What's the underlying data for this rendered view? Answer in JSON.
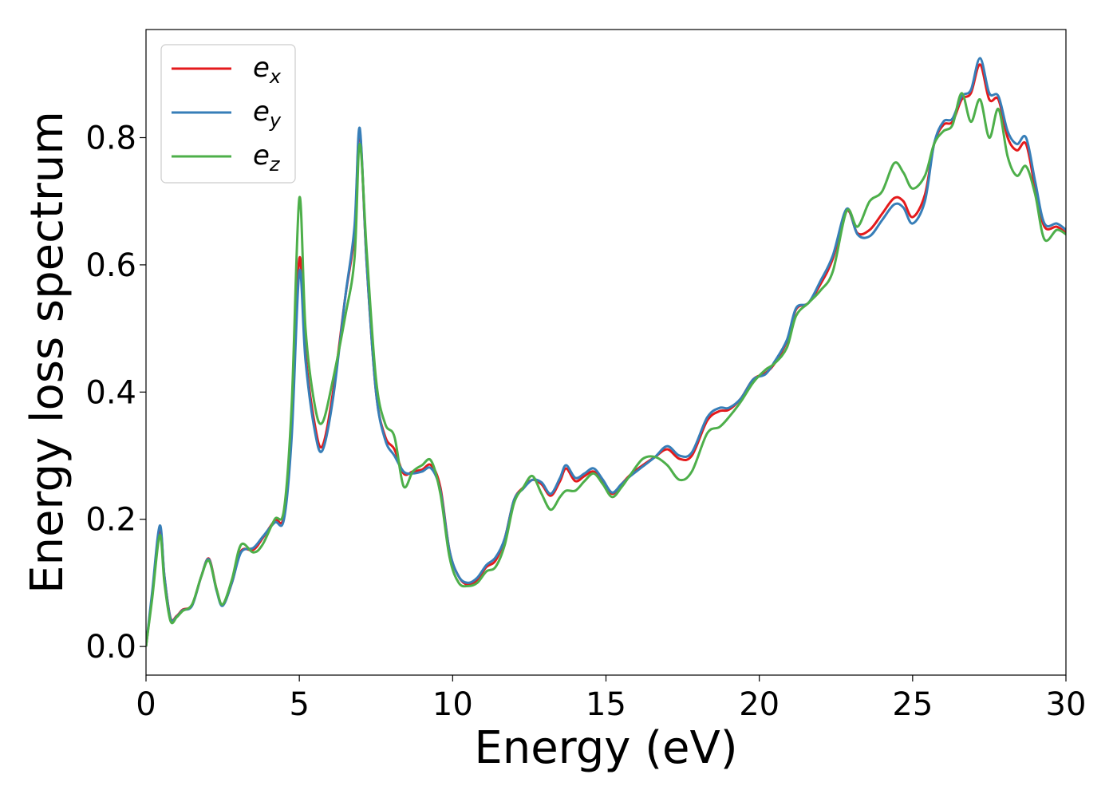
{
  "chart_data": {
    "type": "line",
    "xlabel": "Energy (eV)",
    "ylabel": "Energy loss spectrum",
    "xlim": [
      0,
      30
    ],
    "ylim": [
      -0.045,
      0.97
    ],
    "xticks": [
      0,
      5,
      10,
      15,
      20,
      25,
      30
    ],
    "xtick_labels": [
      "0",
      "5",
      "10",
      "15",
      "20",
      "25",
      "30"
    ],
    "yticks": [
      0.0,
      0.2,
      0.4,
      0.6,
      0.8
    ],
    "ytick_labels": [
      "0.0",
      "0.2",
      "0.4",
      "0.6",
      "0.8"
    ],
    "grid": false,
    "legend_position": "top-left",
    "series": [
      {
        "name": "e",
        "subscript": "x",
        "color": "#e41a1c",
        "points": [
          [
            0,
            0.0
          ],
          [
            0.2,
            0.08
          ],
          [
            0.45,
            0.185
          ],
          [
            0.6,
            0.11
          ],
          [
            0.8,
            0.045
          ],
          [
            1.0,
            0.048
          ],
          [
            1.2,
            0.058
          ],
          [
            1.5,
            0.065
          ],
          [
            1.8,
            0.11
          ],
          [
            2.05,
            0.138
          ],
          [
            2.3,
            0.09
          ],
          [
            2.5,
            0.065
          ],
          [
            2.8,
            0.1
          ],
          [
            3.1,
            0.15
          ],
          [
            3.5,
            0.152
          ],
          [
            3.8,
            0.17
          ],
          [
            4.2,
            0.198
          ],
          [
            4.5,
            0.205
          ],
          [
            4.75,
            0.34
          ],
          [
            5.0,
            0.61
          ],
          [
            5.2,
            0.46
          ],
          [
            5.5,
            0.35
          ],
          [
            5.75,
            0.315
          ],
          [
            6.1,
            0.4
          ],
          [
            6.5,
            0.55
          ],
          [
            6.8,
            0.65
          ],
          [
            6.97,
            0.81
          ],
          [
            7.2,
            0.6
          ],
          [
            7.5,
            0.4
          ],
          [
            7.8,
            0.33
          ],
          [
            8.1,
            0.31
          ],
          [
            8.4,
            0.272
          ],
          [
            8.7,
            0.275
          ],
          [
            9.0,
            0.278
          ],
          [
            9.3,
            0.285
          ],
          [
            9.6,
            0.25
          ],
          [
            9.9,
            0.15
          ],
          [
            10.2,
            0.11
          ],
          [
            10.5,
            0.097
          ],
          [
            10.8,
            0.105
          ],
          [
            11.1,
            0.125
          ],
          [
            11.4,
            0.135
          ],
          [
            11.7,
            0.17
          ],
          [
            12.0,
            0.23
          ],
          [
            12.3,
            0.25
          ],
          [
            12.6,
            0.262
          ],
          [
            12.9,
            0.255
          ],
          [
            13.2,
            0.237
          ],
          [
            13.5,
            0.26
          ],
          [
            13.7,
            0.28
          ],
          [
            14.0,
            0.26
          ],
          [
            14.3,
            0.268
          ],
          [
            14.6,
            0.275
          ],
          [
            14.9,
            0.26
          ],
          [
            15.2,
            0.24
          ],
          [
            15.5,
            0.255
          ],
          [
            15.8,
            0.27
          ],
          [
            16.2,
            0.285
          ],
          [
            16.6,
            0.298
          ],
          [
            17.0,
            0.31
          ],
          [
            17.4,
            0.295
          ],
          [
            17.8,
            0.3
          ],
          [
            18.3,
            0.355
          ],
          [
            18.7,
            0.37
          ],
          [
            19.0,
            0.372
          ],
          [
            19.4,
            0.39
          ],
          [
            19.8,
            0.42
          ],
          [
            20.2,
            0.43
          ],
          [
            20.5,
            0.445
          ],
          [
            20.9,
            0.48
          ],
          [
            21.2,
            0.53
          ],
          [
            21.6,
            0.54
          ],
          [
            22.0,
            0.57
          ],
          [
            22.4,
            0.61
          ],
          [
            22.85,
            0.685
          ],
          [
            23.2,
            0.65
          ],
          [
            23.6,
            0.655
          ],
          [
            24.0,
            0.68
          ],
          [
            24.4,
            0.705
          ],
          [
            24.7,
            0.7
          ],
          [
            25.0,
            0.675
          ],
          [
            25.4,
            0.71
          ],
          [
            25.7,
            0.79
          ],
          [
            26.0,
            0.82
          ],
          [
            26.3,
            0.825
          ],
          [
            26.6,
            0.86
          ],
          [
            26.9,
            0.87
          ],
          [
            27.2,
            0.915
          ],
          [
            27.5,
            0.86
          ],
          [
            27.8,
            0.86
          ],
          [
            28.1,
            0.8
          ],
          [
            28.4,
            0.78
          ],
          [
            28.7,
            0.79
          ],
          [
            29.0,
            0.72
          ],
          [
            29.3,
            0.66
          ],
          [
            29.7,
            0.66
          ],
          [
            30.0,
            0.65
          ]
        ]
      },
      {
        "name": "e",
        "subscript": "y",
        "color": "#377eb8",
        "points": [
          [
            0,
            0.0
          ],
          [
            0.2,
            0.085
          ],
          [
            0.45,
            0.19
          ],
          [
            0.6,
            0.11
          ],
          [
            0.8,
            0.044
          ],
          [
            1.0,
            0.047
          ],
          [
            1.2,
            0.057
          ],
          [
            1.5,
            0.064
          ],
          [
            1.8,
            0.11
          ],
          [
            2.05,
            0.137
          ],
          [
            2.3,
            0.088
          ],
          [
            2.5,
            0.064
          ],
          [
            2.8,
            0.1
          ],
          [
            3.1,
            0.148
          ],
          [
            3.5,
            0.155
          ],
          [
            3.8,
            0.172
          ],
          [
            4.2,
            0.195
          ],
          [
            4.5,
            0.2
          ],
          [
            4.75,
            0.33
          ],
          [
            5.0,
            0.59
          ],
          [
            5.2,
            0.45
          ],
          [
            5.5,
            0.34
          ],
          [
            5.75,
            0.308
          ],
          [
            6.1,
            0.39
          ],
          [
            6.5,
            0.55
          ],
          [
            6.8,
            0.66
          ],
          [
            6.97,
            0.815
          ],
          [
            7.2,
            0.6
          ],
          [
            7.5,
            0.4
          ],
          [
            7.8,
            0.325
          ],
          [
            8.1,
            0.3
          ],
          [
            8.4,
            0.275
          ],
          [
            8.7,
            0.272
          ],
          [
            9.0,
            0.275
          ],
          [
            9.3,
            0.28
          ],
          [
            9.6,
            0.245
          ],
          [
            9.9,
            0.15
          ],
          [
            10.2,
            0.11
          ],
          [
            10.5,
            0.1
          ],
          [
            10.8,
            0.108
          ],
          [
            11.1,
            0.128
          ],
          [
            11.4,
            0.14
          ],
          [
            11.7,
            0.17
          ],
          [
            12.0,
            0.23
          ],
          [
            12.3,
            0.248
          ],
          [
            12.6,
            0.262
          ],
          [
            12.9,
            0.258
          ],
          [
            13.2,
            0.24
          ],
          [
            13.5,
            0.265
          ],
          [
            13.7,
            0.285
          ],
          [
            14.0,
            0.265
          ],
          [
            14.3,
            0.272
          ],
          [
            14.6,
            0.28
          ],
          [
            14.9,
            0.262
          ],
          [
            15.2,
            0.242
          ],
          [
            15.5,
            0.255
          ],
          [
            15.8,
            0.268
          ],
          [
            16.2,
            0.283
          ],
          [
            16.6,
            0.298
          ],
          [
            17.0,
            0.315
          ],
          [
            17.4,
            0.3
          ],
          [
            17.8,
            0.305
          ],
          [
            18.3,
            0.36
          ],
          [
            18.7,
            0.375
          ],
          [
            19.0,
            0.375
          ],
          [
            19.4,
            0.39
          ],
          [
            19.8,
            0.42
          ],
          [
            20.2,
            0.428
          ],
          [
            20.5,
            0.448
          ],
          [
            20.9,
            0.482
          ],
          [
            21.2,
            0.532
          ],
          [
            21.6,
            0.54
          ],
          [
            22.0,
            0.575
          ],
          [
            22.4,
            0.615
          ],
          [
            22.85,
            0.688
          ],
          [
            23.2,
            0.648
          ],
          [
            23.6,
            0.645
          ],
          [
            24.0,
            0.67
          ],
          [
            24.4,
            0.695
          ],
          [
            24.7,
            0.69
          ],
          [
            25.0,
            0.665
          ],
          [
            25.4,
            0.7
          ],
          [
            25.7,
            0.79
          ],
          [
            26.0,
            0.825
          ],
          [
            26.3,
            0.83
          ],
          [
            26.6,
            0.865
          ],
          [
            26.9,
            0.875
          ],
          [
            27.2,
            0.925
          ],
          [
            27.5,
            0.87
          ],
          [
            27.8,
            0.865
          ],
          [
            28.1,
            0.81
          ],
          [
            28.4,
            0.79
          ],
          [
            28.7,
            0.8
          ],
          [
            29.0,
            0.73
          ],
          [
            29.3,
            0.665
          ],
          [
            29.7,
            0.665
          ],
          [
            30.0,
            0.655
          ]
        ]
      },
      {
        "name": "e",
        "subscript": "z",
        "color": "#4daf4a",
        "points": [
          [
            0,
            0.0
          ],
          [
            0.2,
            0.075
          ],
          [
            0.45,
            0.175
          ],
          [
            0.6,
            0.1
          ],
          [
            0.8,
            0.04
          ],
          [
            1.0,
            0.046
          ],
          [
            1.2,
            0.056
          ],
          [
            1.5,
            0.066
          ],
          [
            1.8,
            0.11
          ],
          [
            2.05,
            0.135
          ],
          [
            2.3,
            0.09
          ],
          [
            2.5,
            0.066
          ],
          [
            2.8,
            0.105
          ],
          [
            3.1,
            0.16
          ],
          [
            3.5,
            0.148
          ],
          [
            3.8,
            0.16
          ],
          [
            4.2,
            0.2
          ],
          [
            4.5,
            0.215
          ],
          [
            4.75,
            0.38
          ],
          [
            5.0,
            0.705
          ],
          [
            5.2,
            0.5
          ],
          [
            5.5,
            0.38
          ],
          [
            5.75,
            0.352
          ],
          [
            6.1,
            0.42
          ],
          [
            6.5,
            0.52
          ],
          [
            6.8,
            0.61
          ],
          [
            6.97,
            0.79
          ],
          [
            7.2,
            0.62
          ],
          [
            7.5,
            0.42
          ],
          [
            7.8,
            0.35
          ],
          [
            8.1,
            0.33
          ],
          [
            8.4,
            0.252
          ],
          [
            8.7,
            0.275
          ],
          [
            9.0,
            0.285
          ],
          [
            9.3,
            0.292
          ],
          [
            9.6,
            0.24
          ],
          [
            9.9,
            0.14
          ],
          [
            10.2,
            0.1
          ],
          [
            10.5,
            0.095
          ],
          [
            10.8,
            0.1
          ],
          [
            11.1,
            0.118
          ],
          [
            11.4,
            0.125
          ],
          [
            11.7,
            0.16
          ],
          [
            12.0,
            0.225
          ],
          [
            12.3,
            0.25
          ],
          [
            12.6,
            0.268
          ],
          [
            12.9,
            0.24
          ],
          [
            13.2,
            0.215
          ],
          [
            13.5,
            0.235
          ],
          [
            13.7,
            0.245
          ],
          [
            14.0,
            0.245
          ],
          [
            14.3,
            0.26
          ],
          [
            14.6,
            0.272
          ],
          [
            14.9,
            0.255
          ],
          [
            15.2,
            0.235
          ],
          [
            15.5,
            0.25
          ],
          [
            15.8,
            0.27
          ],
          [
            16.2,
            0.295
          ],
          [
            16.6,
            0.298
          ],
          [
            17.0,
            0.285
          ],
          [
            17.4,
            0.262
          ],
          [
            17.8,
            0.275
          ],
          [
            18.3,
            0.335
          ],
          [
            18.7,
            0.345
          ],
          [
            19.0,
            0.36
          ],
          [
            19.4,
            0.385
          ],
          [
            19.8,
            0.415
          ],
          [
            20.2,
            0.435
          ],
          [
            20.5,
            0.445
          ],
          [
            20.9,
            0.47
          ],
          [
            21.2,
            0.52
          ],
          [
            21.6,
            0.54
          ],
          [
            22.0,
            0.56
          ],
          [
            22.4,
            0.59
          ],
          [
            22.85,
            0.685
          ],
          [
            23.2,
            0.66
          ],
          [
            23.6,
            0.7
          ],
          [
            24.0,
            0.715
          ],
          [
            24.4,
            0.76
          ],
          [
            24.7,
            0.745
          ],
          [
            25.0,
            0.72
          ],
          [
            25.4,
            0.74
          ],
          [
            25.7,
            0.79
          ],
          [
            26.0,
            0.81
          ],
          [
            26.3,
            0.82
          ],
          [
            26.6,
            0.87
          ],
          [
            26.9,
            0.825
          ],
          [
            27.2,
            0.86
          ],
          [
            27.5,
            0.8
          ],
          [
            27.8,
            0.845
          ],
          [
            28.1,
            0.77
          ],
          [
            28.4,
            0.74
          ],
          [
            28.7,
            0.755
          ],
          [
            29.0,
            0.71
          ],
          [
            29.3,
            0.64
          ],
          [
            29.7,
            0.655
          ],
          [
            30.0,
            0.648
          ]
        ]
      }
    ]
  }
}
